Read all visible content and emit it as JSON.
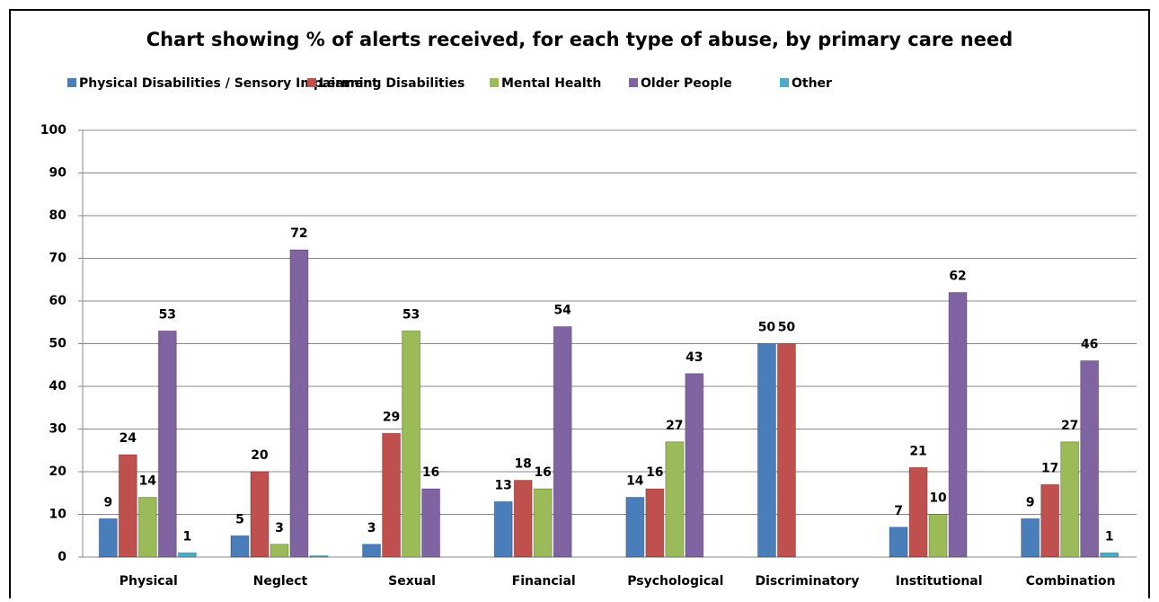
{
  "chart_data": {
    "type": "bar",
    "title": "Chart showing % of alerts received, for each type of abuse, by primary care need",
    "categories": [
      "Physical",
      "Neglect",
      "Sexual",
      "Financial",
      "Psychological",
      "Discriminatory",
      "Institutional",
      "Combination"
    ],
    "series": [
      {
        "name": "Physical Disabilities / Sensory Impairment",
        "color": "#4a7ebb",
        "values": [
          9,
          5,
          3,
          13,
          14,
          50,
          7,
          9
        ]
      },
      {
        "name": "Learning Disabilities",
        "color": "#c0504d",
        "values": [
          24,
          20,
          29,
          18,
          16,
          50,
          21,
          17
        ]
      },
      {
        "name": "Mental Health",
        "color": "#9bbb59",
        "values": [
          14,
          3,
          53,
          16,
          27,
          null,
          10,
          27
        ]
      },
      {
        "name": "Older People",
        "color": "#8064a2",
        "values": [
          53,
          72,
          16,
          54,
          43,
          null,
          62,
          46
        ]
      },
      {
        "name": "Other",
        "color": "#4bacc6",
        "values": [
          1,
          0.3,
          null,
          null,
          null,
          null,
          null,
          1
        ],
        "value_labels": [
          "1",
          null,
          null,
          null,
          null,
          null,
          null,
          "1"
        ]
      }
    ],
    "ylim": [
      0,
      100
    ],
    "yticks": [
      0,
      10,
      20,
      30,
      40,
      50,
      60,
      70,
      80,
      90,
      100
    ],
    "grid": true,
    "legend": "top"
  }
}
